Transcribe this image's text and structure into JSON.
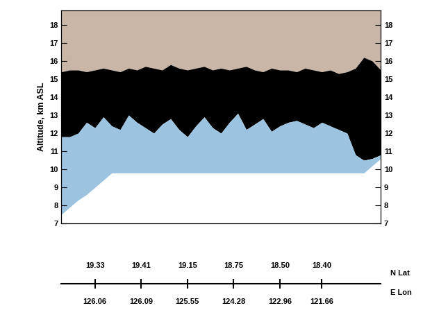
{
  "chart_data": {
    "type": "lidar_cross_section",
    "y_label": "Altitude, km ASL",
    "x": [
      0,
      1,
      2,
      3,
      4,
      5,
      6,
      7,
      8,
      9,
      10,
      11,
      12,
      13,
      14,
      15,
      16,
      17,
      18,
      19,
      20,
      21,
      22,
      23,
      24,
      25,
      26,
      27,
      28,
      29,
      30,
      31,
      32,
      33,
      34,
      35,
      36,
      37,
      38
    ],
    "cloud_top": [
      15.4,
      15.5,
      15.5,
      15.4,
      15.5,
      15.6,
      15.5,
      15.4,
      15.6,
      15.5,
      15.7,
      15.6,
      15.5,
      15.8,
      15.6,
      15.5,
      15.6,
      15.7,
      15.5,
      15.6,
      15.5,
      15.6,
      15.7,
      15.5,
      15.4,
      15.6,
      15.5,
      15.5,
      15.4,
      15.6,
      15.5,
      15.4,
      15.5,
      15.3,
      15.4,
      15.6,
      16.2,
      16.0,
      15.5
    ],
    "cloud_base": [
      11.8,
      11.8,
      12.0,
      12.6,
      12.3,
      12.9,
      12.4,
      12.2,
      13.0,
      12.6,
      12.3,
      12.0,
      12.5,
      12.8,
      12.2,
      11.8,
      12.4,
      12.9,
      12.3,
      12.0,
      12.6,
      13.1,
      12.2,
      12.5,
      12.8,
      12.1,
      12.4,
      12.6,
      12.7,
      12.5,
      12.3,
      12.6,
      12.4,
      12.2,
      12.0,
      10.8,
      10.5,
      10.6,
      10.8
    ],
    "data_floor": [
      7.5,
      7.9,
      8.3,
      8.6,
      9.0,
      9.4,
      9.8,
      9.8,
      9.8,
      9.8,
      9.8,
      9.8,
      9.8,
      9.8,
      9.8,
      9.8,
      9.8,
      9.8,
      9.8,
      9.8,
      9.8,
      9.8,
      9.8,
      9.8,
      9.8,
      9.8,
      9.8,
      9.8,
      9.8,
      9.8,
      9.8,
      9.8,
      9.8,
      9.8,
      9.8,
      9.8,
      9.8,
      10.2,
      10.6
    ],
    "colors": [
      "#c9b6a6",
      "#000000",
      "#9cc3e0"
    ],
    "xlim": [
      0,
      38
    ],
    "ylim": [
      7,
      18.8
    ],
    "yticks": [
      7,
      8,
      9,
      10,
      11,
      12,
      13,
      14,
      15,
      16,
      17,
      18
    ],
    "xticks": [
      4,
      9.5,
      15,
      20.5,
      26,
      31
    ],
    "lat_label": "N Lat",
    "lat_ticks": [
      "19.33",
      "19.41",
      "19.15",
      "18.75",
      "18.50",
      "18.40"
    ],
    "lon_label": "E Lon",
    "lon_ticks": [
      "126.06",
      "126.09",
      "125.55",
      "124.28",
      "122.96",
      "121.66"
    ],
    "tick_labels": "y"
  }
}
